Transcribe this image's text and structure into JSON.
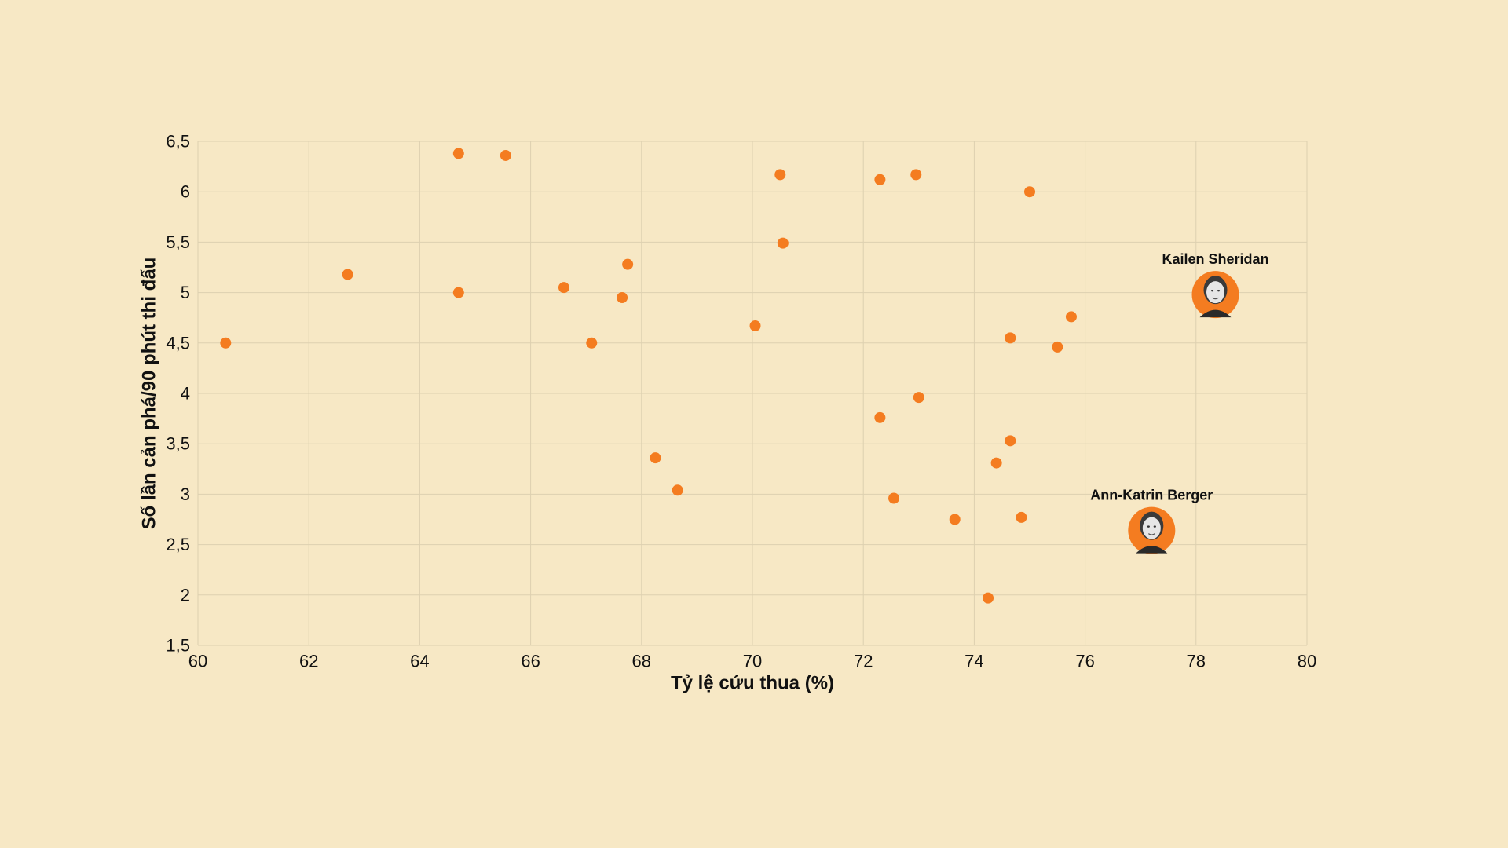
{
  "chart_data": {
    "type": "scatter",
    "title": "",
    "xlabel": "Tỷ lệ cứu thua (%)",
    "ylabel": "Số lần cản phá/90 phút thi đấu",
    "xlim": [
      60,
      80
    ],
    "ylim": [
      1.5,
      6.5
    ],
    "grid": true,
    "x_ticks": [
      60,
      62,
      64,
      66,
      68,
      70,
      72,
      74,
      76,
      78,
      80
    ],
    "y_ticks": [
      1.5,
      2,
      2.5,
      3,
      3.5,
      4,
      4.5,
      5,
      5.5,
      6,
      6.5
    ],
    "x_tick_labels": [
      "60",
      "62",
      "64",
      "66",
      "68",
      "70",
      "72",
      "74",
      "76",
      "78",
      "80"
    ],
    "y_tick_labels": [
      "1,5",
      "2",
      "2,5",
      "3",
      "3,5",
      "4",
      "4,5",
      "5",
      "5,5",
      "6",
      "6,5"
    ],
    "point_color": "#f47c20",
    "background_color": "#f7e8c5",
    "points": [
      {
        "x": 60.5,
        "y": 4.5
      },
      {
        "x": 62.7,
        "y": 5.18
      },
      {
        "x": 64.7,
        "y": 6.38
      },
      {
        "x": 64.7,
        "y": 5.0
      },
      {
        "x": 65.55,
        "y": 6.36
      },
      {
        "x": 66.6,
        "y": 5.05
      },
      {
        "x": 67.1,
        "y": 4.5
      },
      {
        "x": 67.65,
        "y": 4.95
      },
      {
        "x": 67.75,
        "y": 5.28
      },
      {
        "x": 68.25,
        "y": 3.36
      },
      {
        "x": 68.65,
        "y": 3.04
      },
      {
        "x": 70.05,
        "y": 4.67
      },
      {
        "x": 70.5,
        "y": 6.17
      },
      {
        "x": 70.55,
        "y": 5.49
      },
      {
        "x": 72.3,
        "y": 6.12
      },
      {
        "x": 72.3,
        "y": 3.76
      },
      {
        "x": 72.55,
        "y": 2.96
      },
      {
        "x": 72.95,
        "y": 6.17
      },
      {
        "x": 73.0,
        "y": 3.96
      },
      {
        "x": 73.65,
        "y": 2.75
      },
      {
        "x": 74.25,
        "y": 1.97
      },
      {
        "x": 74.4,
        "y": 3.31
      },
      {
        "x": 74.65,
        "y": 4.55
      },
      {
        "x": 74.65,
        "y": 3.53
      },
      {
        "x": 74.85,
        "y": 2.77
      },
      {
        "x": 75.0,
        "y": 6.0
      },
      {
        "x": 75.5,
        "y": 4.46
      },
      {
        "x": 75.75,
        "y": 4.76
      }
    ],
    "highlighted": [
      {
        "name": "Kailen Sheridan",
        "x": 78.35,
        "y": 4.98
      },
      {
        "name": "Ann-Katrin Berger",
        "x": 77.2,
        "y": 2.64
      }
    ]
  }
}
